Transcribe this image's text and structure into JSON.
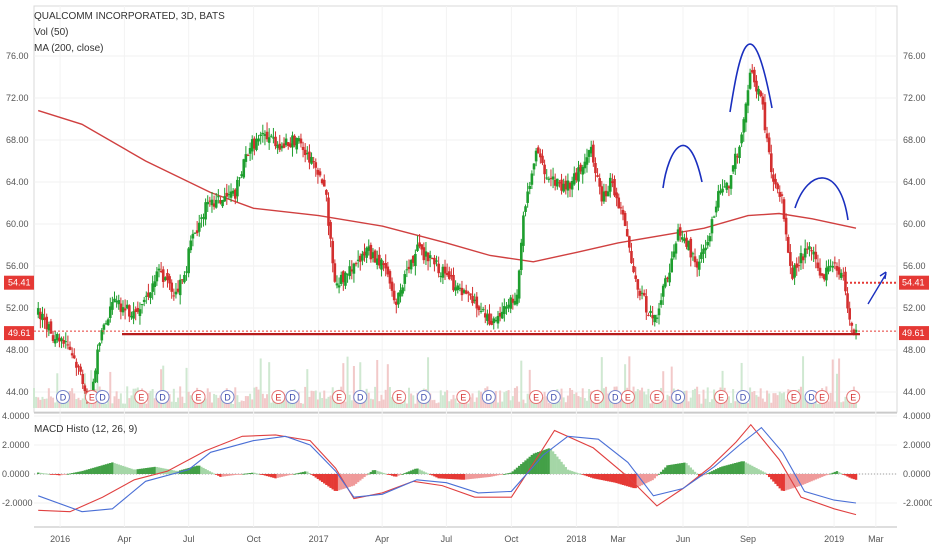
{
  "header": {
    "symbol_line": "QUALCOMM INCORPORATED, 3D, BATS",
    "vol_label": "Vol (50)",
    "ma_label": "MA (200, close)",
    "macd_label": "MACD Histo (12, 26, 9)"
  },
  "colors": {
    "up": "#26a69a",
    "down": "#ef5350",
    "candle_up": "#1e9e2e",
    "candle_down": "#d32f2f",
    "ma": "#d04040",
    "macd_line": "#4a6fd6",
    "signal_line": "#e04040",
    "annotation": "#1a2fbf",
    "support": "#b71c1c"
  },
  "chart_data": [
    {
      "type": "candlestick",
      "pane": "price",
      "title": "QUALCOMM INCORPORATED, 3D, BATS",
      "ylim": [
        42.0,
        78.0
      ],
      "y_ticks": [
        "44.00",
        "48.00",
        "52.00",
        "56.00",
        "60.00",
        "64.00",
        "68.00",
        "72.00",
        "76.00"
      ],
      "x_ticks": [
        "2016",
        "Apr",
        "Jul",
        "Oct",
        "2017",
        "Apr",
        "Jul",
        "Oct",
        "2018",
        "Mar",
        "Jun",
        "Sep",
        "2019",
        "Mar"
      ],
      "price_badges": [
        "54.41",
        "49.61"
      ],
      "support_level": 49.61,
      "resistance_level": 54.41,
      "close_path": [
        [
          "2015-12-01",
          51.5
        ],
        [
          "2015-12-20",
          49.5
        ],
        [
          "2016-01-10",
          49.0
        ],
        [
          "2016-02-01",
          45.5
        ],
        [
          "2016-02-12",
          43.0
        ],
        [
          "2016-02-25",
          48.5
        ],
        [
          "2016-03-05",
          51.0
        ],
        [
          "2016-03-20",
          52.5
        ],
        [
          "2016-04-10",
          51.5
        ],
        [
          "2016-05-01",
          53.0
        ],
        [
          "2016-05-20",
          55.5
        ],
        [
          "2016-06-10",
          53.5
        ],
        [
          "2016-06-25",
          55.0
        ],
        [
          "2016-07-05",
          58.5
        ],
        [
          "2016-07-25",
          61.5
        ],
        [
          "2016-08-20",
          62.5
        ],
        [
          "2016-09-05",
          63.0
        ],
        [
          "2016-09-25",
          67.5
        ],
        [
          "2016-10-20",
          68.5
        ],
        [
          "2016-11-10",
          67.5
        ],
        [
          "2016-12-01",
          68.0
        ],
        [
          "2016-12-25",
          65.5
        ],
        [
          "2017-01-10",
          63.5
        ],
        [
          "2017-01-25",
          54.0
        ],
        [
          "2017-02-15",
          55.5
        ],
        [
          "2017-03-10",
          57.5
        ],
        [
          "2017-04-05",
          56.0
        ],
        [
          "2017-04-20",
          52.5
        ],
        [
          "2017-05-20",
          57.5
        ],
        [
          "2017-06-10",
          56.5
        ],
        [
          "2017-06-25",
          55.5
        ],
        [
          "2017-07-20",
          53.5
        ],
        [
          "2017-08-10",
          52.5
        ],
        [
          "2017-09-01",
          50.5
        ],
        [
          "2017-09-25",
          52.0
        ],
        [
          "2017-10-10",
          53.5
        ],
        [
          "2017-10-20",
          62.0
        ],
        [
          "2017-11-05",
          66.5
        ],
        [
          "2017-11-25",
          64.5
        ],
        [
          "2017-12-15",
          63.5
        ],
        [
          "2018-01-01",
          64.5
        ],
        [
          "2018-01-20",
          67.5
        ],
        [
          "2018-02-05",
          62.5
        ],
        [
          "2018-02-20",
          64.0
        ],
        [
          "2018-03-10",
          60.0
        ],
        [
          "2018-03-25",
          54.5
        ],
        [
          "2018-04-05",
          53.0
        ],
        [
          "2018-04-20",
          50.5
        ],
        [
          "2018-05-10",
          55.0
        ],
        [
          "2018-05-25",
          59.0
        ],
        [
          "2018-06-05",
          58.5
        ],
        [
          "2018-06-20",
          56.0
        ],
        [
          "2018-07-05",
          58.0
        ],
        [
          "2018-07-20",
          62.5
        ],
        [
          "2018-08-05",
          64.0
        ],
        [
          "2018-08-20",
          67.5
        ],
        [
          "2018-09-05",
          74.5
        ],
        [
          "2018-09-20",
          72.0
        ],
        [
          "2018-10-05",
          64.5
        ],
        [
          "2018-10-20",
          62.0
        ],
        [
          "2018-11-01",
          55.0
        ],
        [
          "2018-11-15",
          57.0
        ],
        [
          "2018-12-01",
          57.5
        ],
        [
          "2018-12-15",
          55.0
        ],
        [
          "2019-01-01",
          56.5
        ],
        [
          "2019-01-15",
          54.5
        ],
        [
          "2019-01-25",
          50.5
        ],
        [
          "2019-02-01",
          49.6
        ]
      ],
      "ma200": [
        [
          "2015-12-01",
          70.8
        ],
        [
          "2016-02-01",
          69.5
        ],
        [
          "2016-05-01",
          66.0
        ],
        [
          "2016-08-01",
          63.0
        ],
        [
          "2016-10-01",
          61.5
        ],
        [
          "2017-01-01",
          60.8
        ],
        [
          "2017-04-01",
          59.8
        ],
        [
          "2017-07-01",
          58.2
        ],
        [
          "2017-09-01",
          57.0
        ],
        [
          "2017-11-01",
          56.4
        ],
        [
          "2018-01-01",
          57.3
        ],
        [
          "2018-03-01",
          58.2
        ],
        [
          "2018-05-01",
          58.9
        ],
        [
          "2018-07-01",
          59.6
        ],
        [
          "2018-09-01",
          60.8
        ],
        [
          "2018-10-15",
          61.0
        ],
        [
          "2018-12-01",
          60.5
        ],
        [
          "2019-02-01",
          59.6
        ]
      ],
      "event_markers": [
        {
          "date": "2016-01-05",
          "label": "D"
        },
        {
          "date": "2016-02-15",
          "label": "E"
        },
        {
          "date": "2016-03-01",
          "label": "D"
        },
        {
          "date": "2016-04-25",
          "label": "E"
        },
        {
          "date": "2016-05-25",
          "label": "D"
        },
        {
          "date": "2016-07-15",
          "label": "E"
        },
        {
          "date": "2016-08-25",
          "label": "D"
        },
        {
          "date": "2016-11-05",
          "label": "E"
        },
        {
          "date": "2016-11-25",
          "label": "D"
        },
        {
          "date": "2017-01-30",
          "label": "E"
        },
        {
          "date": "2017-03-01",
          "label": "D"
        },
        {
          "date": "2017-04-25",
          "label": "E"
        },
        {
          "date": "2017-05-30",
          "label": "D"
        },
        {
          "date": "2017-07-25",
          "label": "E"
        },
        {
          "date": "2017-08-30",
          "label": "D"
        },
        {
          "date": "2017-11-05",
          "label": "E"
        },
        {
          "date": "2017-11-30",
          "label": "D"
        },
        {
          "date": "2018-01-30",
          "label": "E"
        },
        {
          "date": "2018-02-25",
          "label": "D"
        },
        {
          "date": "2018-03-15",
          "label": "E"
        },
        {
          "date": "2018-04-25",
          "label": "E"
        },
        {
          "date": "2018-05-25",
          "label": "D"
        },
        {
          "date": "2018-07-25",
          "label": "E"
        },
        {
          "date": "2018-08-25",
          "label": "D"
        },
        {
          "date": "2018-11-05",
          "label": "E"
        },
        {
          "date": "2018-11-30",
          "label": "D"
        },
        {
          "date": "2018-12-15",
          "label": "E"
        },
        {
          "date": "2019-01-28",
          "label": "E"
        }
      ]
    },
    {
      "type": "bar+line",
      "pane": "macd",
      "title": "MACD Histo (12, 26, 9)",
      "ylim": [
        -3.6,
        4.4
      ],
      "y_ticks": [
        "4.0000",
        "2.0000",
        "0.0000",
        "-2.0000"
      ],
      "histogram": [
        [
          "2015-12-01",
          0.1
        ],
        [
          "2016-01-01",
          -0.1
        ],
        [
          "2016-02-01",
          0.2
        ],
        [
          "2016-03-15",
          0.8
        ],
        [
          "2016-04-15",
          0.3
        ],
        [
          "2016-05-15",
          0.5
        ],
        [
          "2016-06-15",
          0.2
        ],
        [
          "2016-07-15",
          0.6
        ],
        [
          "2016-08-15",
          -0.2
        ],
        [
          "2016-10-01",
          0.1
        ],
        [
          "2016-11-01",
          -0.3
        ],
        [
          "2016-12-15",
          0.2
        ],
        [
          "2017-01-25",
          -1.2
        ],
        [
          "2017-02-20",
          -0.8
        ],
        [
          "2017-03-20",
          0.3
        ],
        [
          "2017-04-20",
          -0.2
        ],
        [
          "2017-05-20",
          0.4
        ],
        [
          "2017-06-20",
          -0.3
        ],
        [
          "2017-07-25",
          -0.4
        ],
        [
          "2017-09-01",
          -0.2
        ],
        [
          "2017-10-01",
          0.1
        ],
        [
          "2017-11-01",
          1.4
        ],
        [
          "2017-11-25",
          1.8
        ],
        [
          "2017-12-20",
          0.3
        ],
        [
          "2018-01-25",
          -0.3
        ],
        [
          "2018-02-25",
          -0.6
        ],
        [
          "2018-03-25",
          -1.0
        ],
        [
          "2018-04-20",
          -0.4
        ],
        [
          "2018-05-10",
          0.6
        ],
        [
          "2018-06-05",
          0.8
        ],
        [
          "2018-06-25",
          -0.2
        ],
        [
          "2018-07-25",
          0.5
        ],
        [
          "2018-08-25",
          0.9
        ],
        [
          "2018-09-25",
          0.1
        ],
        [
          "2018-10-20",
          -1.2
        ],
        [
          "2018-11-15",
          -0.8
        ],
        [
          "2018-12-15",
          -0.2
        ],
        [
          "2019-01-05",
          0.2
        ],
        [
          "2019-01-25",
          -0.3
        ],
        [
          "2019-02-01",
          -0.4
        ]
      ],
      "macd_line": [
        [
          "2015-12-01",
          -1.5
        ],
        [
          "2016-02-01",
          -2.6
        ],
        [
          "2016-03-15",
          -2.4
        ],
        [
          "2016-05-01",
          -0.5
        ],
        [
          "2016-07-01",
          0.3
        ],
        [
          "2016-08-01",
          1.5
        ],
        [
          "2016-10-01",
          2.3
        ],
        [
          "2016-11-15",
          2.6
        ],
        [
          "2016-12-20",
          2.0
        ],
        [
          "2017-01-25",
          0.2
        ],
        [
          "2017-02-20",
          -1.6
        ],
        [
          "2017-04-01",
          -1.4
        ],
        [
          "2017-05-20",
          -0.4
        ],
        [
          "2017-07-01",
          -0.6
        ],
        [
          "2017-08-15",
          -1.3
        ],
        [
          "2017-10-01",
          -1.2
        ],
        [
          "2017-11-15",
          1.3
        ],
        [
          "2017-12-20",
          2.6
        ],
        [
          "2018-02-01",
          2.4
        ],
        [
          "2018-03-15",
          0.8
        ],
        [
          "2018-04-20",
          -1.5
        ],
        [
          "2018-06-01",
          -1.0
        ],
        [
          "2018-07-15",
          0.5
        ],
        [
          "2018-08-20",
          2.0
        ],
        [
          "2018-09-20",
          3.2
        ],
        [
          "2018-10-20",
          1.5
        ],
        [
          "2018-11-20",
          -1.2
        ],
        [
          "2019-01-01",
          -1.8
        ],
        [
          "2019-02-01",
          -2.0
        ]
      ],
      "signal_line": [
        [
          "2015-12-01",
          -2.5
        ],
        [
          "2016-01-15",
          -2.6
        ],
        [
          "2016-03-01",
          -1.6
        ],
        [
          "2016-04-15",
          -0.4
        ],
        [
          "2016-06-01",
          0.2
        ],
        [
          "2016-07-25",
          1.6
        ],
        [
          "2016-09-15",
          2.6
        ],
        [
          "2016-11-01",
          2.7
        ],
        [
          "2016-12-20",
          2.3
        ],
        [
          "2017-01-25",
          0.4
        ],
        [
          "2017-02-20",
          -1.7
        ],
        [
          "2017-04-01",
          -1.3
        ],
        [
          "2017-05-15",
          -0.5
        ],
        [
          "2017-06-25",
          -0.8
        ],
        [
          "2017-08-10",
          -1.6
        ],
        [
          "2017-10-01",
          -1.6
        ],
        [
          "2017-11-10",
          1.4
        ],
        [
          "2017-12-01",
          3.0
        ],
        [
          "2018-01-25",
          1.8
        ],
        [
          "2018-03-15",
          -0.2
        ],
        [
          "2018-04-25",
          -2.2
        ],
        [
          "2018-06-01",
          -1.0
        ],
        [
          "2018-07-10",
          0.5
        ],
        [
          "2018-08-15",
          2.2
        ],
        [
          "2018-09-05",
          3.4
        ],
        [
          "2018-10-15",
          1.0
        ],
        [
          "2018-11-15",
          -1.6
        ],
        [
          "2019-01-01",
          -2.4
        ],
        [
          "2019-02-01",
          -2.8
        ]
      ]
    }
  ]
}
